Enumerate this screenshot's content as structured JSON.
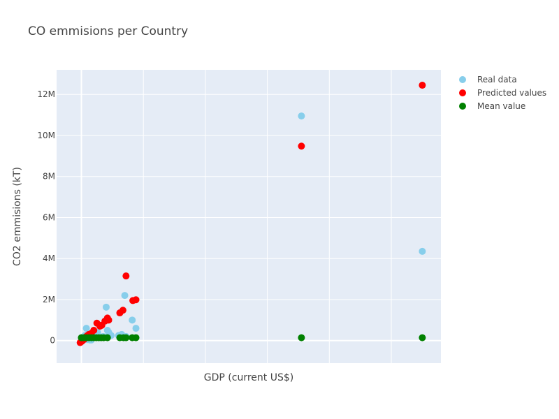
{
  "chart_data": {
    "type": "scatter",
    "title": "CO emmisions per Country",
    "xlabel": "GDP (current US$)",
    "ylabel": "CO2 emmisions (kT)",
    "x_ticks_labeled": false,
    "xlim": [
      -0.4,
      5.8
    ],
    "ylim": [
      -1100000,
      13200000
    ],
    "x_gridlines": [
      0,
      1,
      2,
      3,
      4,
      5
    ],
    "y_ticks": [
      {
        "value": 0,
        "label": "0"
      },
      {
        "value": 2000000,
        "label": "2M"
      },
      {
        "value": 4000000,
        "label": "4M"
      },
      {
        "value": 6000000,
        "label": "6M"
      },
      {
        "value": 8000000,
        "label": "8M"
      },
      {
        "value": 10000000,
        "label": "10M"
      },
      {
        "value": 12000000,
        "label": "12M"
      }
    ],
    "grid": true,
    "legend_position": "top-right",
    "series": [
      {
        "name": "Real data",
        "color": "#87ceeb",
        "points": [
          [
            0.0,
            100000
          ],
          [
            0.02,
            150000
          ],
          [
            0.04,
            200000
          ],
          [
            0.06,
            250000
          ],
          [
            0.08,
            600000
          ],
          [
            0.1,
            50000
          ],
          [
            0.12,
            150000
          ],
          [
            0.14,
            30000
          ],
          [
            0.16,
            30000
          ],
          [
            0.18,
            200000
          ],
          [
            0.22,
            300000
          ],
          [
            0.26,
            400000
          ],
          [
            0.3,
            150000
          ],
          [
            0.35,
            200000
          ],
          [
            0.4,
            1630000
          ],
          [
            0.42,
            500000
          ],
          [
            0.44,
            400000
          ],
          [
            0.48,
            250000
          ],
          [
            0.6,
            250000
          ],
          [
            0.65,
            300000
          ],
          [
            0.7,
            2200000
          ],
          [
            0.72,
            200000
          ],
          [
            0.82,
            1000000
          ],
          [
            0.88,
            600000
          ],
          [
            3.55,
            10950000
          ],
          [
            5.5,
            4350000
          ]
        ]
      },
      {
        "name": "Predicted values",
        "color": "#ff0000",
        "points": [
          [
            -0.02,
            -100000
          ],
          [
            0.0,
            -50000
          ],
          [
            0.02,
            0
          ],
          [
            0.04,
            50000
          ],
          [
            0.06,
            100000
          ],
          [
            0.08,
            200000
          ],
          [
            0.1,
            250000
          ],
          [
            0.12,
            300000
          ],
          [
            0.16,
            350000
          ],
          [
            0.2,
            500000
          ],
          [
            0.25,
            850000
          ],
          [
            0.3,
            700000
          ],
          [
            0.33,
            750000
          ],
          [
            0.38,
            950000
          ],
          [
            0.42,
            1100000
          ],
          [
            0.44,
            1000000
          ],
          [
            0.62,
            1350000
          ],
          [
            0.67,
            1480000
          ],
          [
            0.72,
            3150000
          ],
          [
            0.83,
            1950000
          ],
          [
            0.88,
            1990000
          ],
          [
            3.55,
            9480000
          ],
          [
            5.5,
            12450000
          ]
        ]
      },
      {
        "name": "Mean value",
        "color": "#008000",
        "points": [
          [
            0.0,
            140000
          ],
          [
            0.04,
            140000
          ],
          [
            0.08,
            140000
          ],
          [
            0.12,
            140000
          ],
          [
            0.16,
            140000
          ],
          [
            0.2,
            140000
          ],
          [
            0.24,
            140000
          ],
          [
            0.28,
            140000
          ],
          [
            0.32,
            140000
          ],
          [
            0.36,
            140000
          ],
          [
            0.42,
            140000
          ],
          [
            0.62,
            140000
          ],
          [
            0.68,
            140000
          ],
          [
            0.72,
            140000
          ],
          [
            0.82,
            140000
          ],
          [
            0.88,
            140000
          ],
          [
            3.55,
            140000
          ],
          [
            5.5,
            140000
          ]
        ]
      }
    ]
  }
}
